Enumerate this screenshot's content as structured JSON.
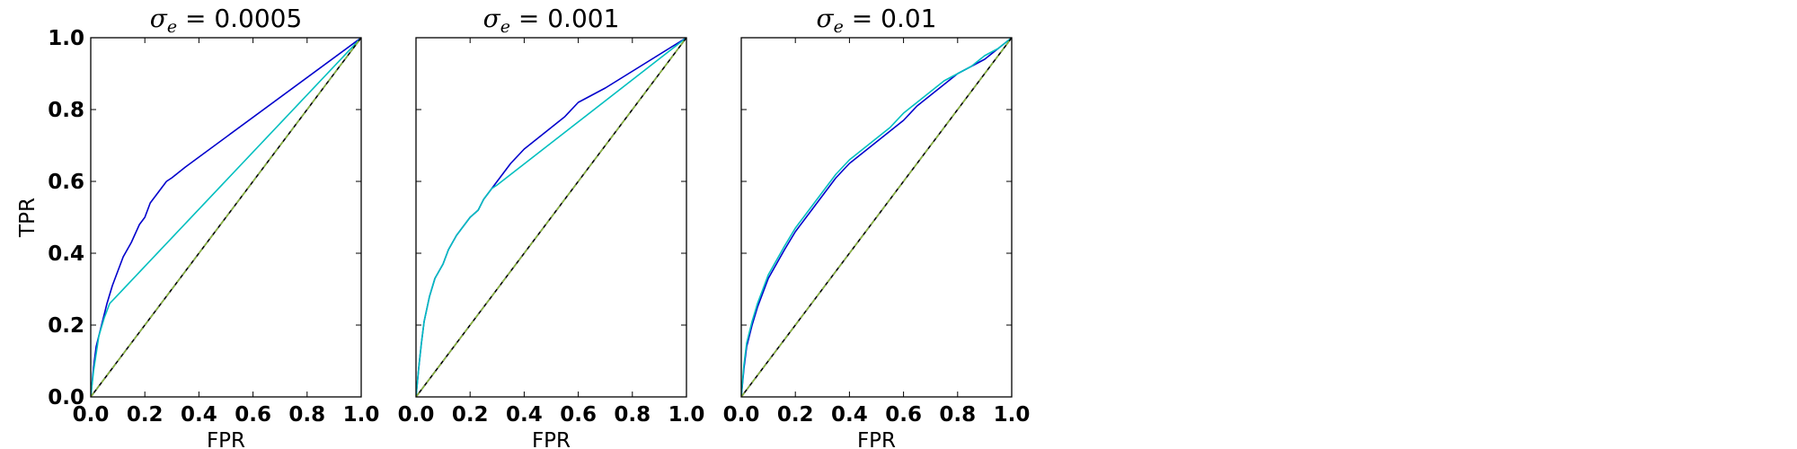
{
  "chart_data": [
    {
      "type": "line",
      "title": {
        "symbol": "σ",
        "subscript": "e",
        "value": " = 0.0005"
      },
      "xlabel": "FPR",
      "ylabel": "TPR",
      "xlim": [
        0,
        1
      ],
      "ylim": [
        0,
        1
      ],
      "xticks": [
        "0.0",
        "0.2",
        "0.4",
        "0.6",
        "0.8",
        "1.0"
      ],
      "yticks": [
        "0.0",
        "0.2",
        "0.4",
        "0.6",
        "0.8",
        "1.0"
      ],
      "series": [
        {
          "color": "#0000cc",
          "x": [
            0,
            0.01,
            0.02,
            0.04,
            0.06,
            0.08,
            0.1,
            0.12,
            0.15,
            0.18,
            0.2,
            0.22,
            0.25,
            0.28,
            0.3,
            0.35,
            1.0
          ],
          "y": [
            0,
            0.08,
            0.14,
            0.2,
            0.26,
            0.31,
            0.35,
            0.39,
            0.43,
            0.48,
            0.5,
            0.54,
            0.57,
            0.6,
            0.61,
            0.64,
            1.0
          ]
        },
        {
          "color": "#00bfbf",
          "x": [
            0,
            0.01,
            0.02,
            0.03,
            0.05,
            0.07,
            1.0
          ],
          "y": [
            0,
            0.07,
            0.12,
            0.17,
            0.22,
            0.26,
            1.0
          ]
        },
        {
          "color": "#000000",
          "x": [
            0,
            1
          ],
          "y": [
            0,
            1
          ]
        },
        {
          "color": "#8fbf3f",
          "x": [
            0,
            1
          ],
          "y": [
            0,
            1
          ],
          "dashed": true
        }
      ]
    },
    {
      "type": "line",
      "title": {
        "symbol": "σ",
        "subscript": "e",
        "value": " = 0.001"
      },
      "xlabel": "FPR",
      "ylabel": "",
      "xlim": [
        0,
        1
      ],
      "ylim": [
        0,
        1
      ],
      "xticks": [
        "0.0",
        "0.2",
        "0.4",
        "0.6",
        "0.8",
        "1.0"
      ],
      "yticks": [],
      "series": [
        {
          "color": "#0000cc",
          "x": [
            0,
            0.01,
            0.02,
            0.03,
            0.05,
            0.07,
            0.1,
            0.12,
            0.15,
            0.18,
            0.2,
            0.23,
            0.25,
            0.28,
            0.3,
            0.35,
            0.4,
            0.45,
            0.5,
            0.55,
            0.6,
            0.65,
            0.7,
            1.0
          ],
          "y": [
            0,
            0.08,
            0.15,
            0.21,
            0.28,
            0.33,
            0.37,
            0.41,
            0.45,
            0.48,
            0.5,
            0.52,
            0.55,
            0.58,
            0.6,
            0.65,
            0.69,
            0.72,
            0.75,
            0.78,
            0.82,
            0.84,
            0.86,
            1.0
          ]
        },
        {
          "color": "#00bfbf",
          "x": [
            0,
            0.01,
            0.02,
            0.03,
            0.05,
            0.07,
            0.1,
            0.12,
            0.15,
            0.18,
            0.2,
            0.23,
            0.25,
            0.28,
            0.3,
            1.0
          ],
          "y": [
            0,
            0.08,
            0.15,
            0.21,
            0.28,
            0.33,
            0.37,
            0.41,
            0.45,
            0.48,
            0.5,
            0.52,
            0.55,
            0.58,
            0.59,
            1.0
          ]
        },
        {
          "color": "#000000",
          "x": [
            0,
            1
          ],
          "y": [
            0,
            1
          ]
        },
        {
          "color": "#8fbf3f",
          "x": [
            0,
            1
          ],
          "y": [
            0,
            1
          ],
          "dashed": true
        }
      ]
    },
    {
      "type": "line",
      "title": {
        "symbol": "σ",
        "subscript": "e",
        "value": " = 0.01"
      },
      "xlabel": "FPR",
      "ylabel": "",
      "xlim": [
        0,
        1
      ],
      "ylim": [
        0,
        1
      ],
      "xticks": [
        "0.0",
        "0.2",
        "0.4",
        "0.6",
        "0.8",
        "1.0"
      ],
      "yticks": [],
      "series": [
        {
          "color": "#0000cc",
          "x": [
            0,
            0.01,
            0.02,
            0.04,
            0.06,
            0.08,
            0.1,
            0.13,
            0.16,
            0.2,
            0.25,
            0.3,
            0.35,
            0.4,
            0.45,
            0.5,
            0.55,
            0.6,
            0.65,
            0.7,
            0.75,
            0.8,
            0.85,
            0.9,
            0.95,
            1.0
          ],
          "y": [
            0,
            0.08,
            0.14,
            0.2,
            0.25,
            0.29,
            0.33,
            0.37,
            0.41,
            0.46,
            0.51,
            0.56,
            0.61,
            0.65,
            0.68,
            0.71,
            0.74,
            0.77,
            0.81,
            0.84,
            0.87,
            0.9,
            0.92,
            0.94,
            0.97,
            1.0
          ]
        },
        {
          "color": "#00bfbf",
          "x": [
            0,
            0.01,
            0.02,
            0.04,
            0.06,
            0.08,
            0.1,
            0.13,
            0.16,
            0.2,
            0.25,
            0.3,
            0.35,
            0.4,
            0.45,
            0.5,
            0.55,
            0.6,
            0.65,
            0.7,
            0.75,
            0.8,
            0.85,
            0.9,
            0.95,
            1.0
          ],
          "y": [
            0,
            0.09,
            0.15,
            0.21,
            0.26,
            0.3,
            0.34,
            0.38,
            0.42,
            0.47,
            0.52,
            0.57,
            0.62,
            0.66,
            0.69,
            0.72,
            0.75,
            0.79,
            0.82,
            0.85,
            0.88,
            0.9,
            0.92,
            0.95,
            0.97,
            1.0
          ]
        },
        {
          "color": "#000000",
          "x": [
            0,
            1
          ],
          "y": [
            0,
            1
          ]
        },
        {
          "color": "#8fbf3f",
          "x": [
            0,
            1
          ],
          "y": [
            0,
            1
          ],
          "dashed": true
        }
      ]
    }
  ]
}
